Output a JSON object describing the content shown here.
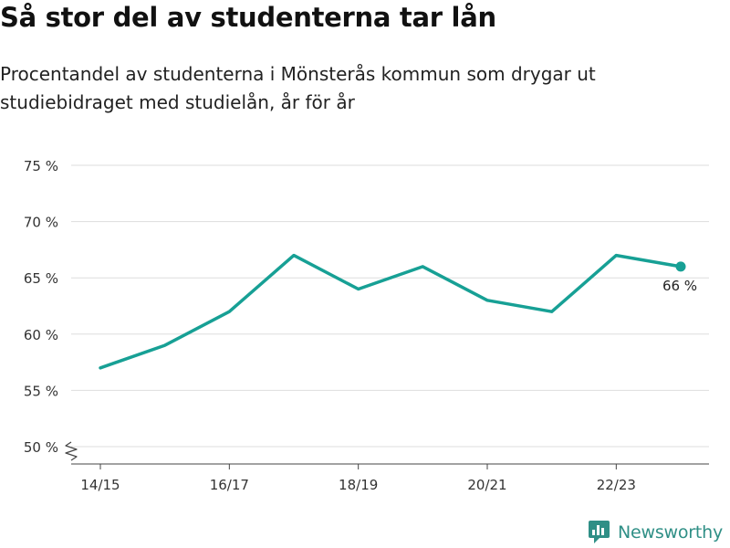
{
  "title": "Så stor del av studenterna tar lån",
  "subtitle": "Procentandel av studenterna i Mönsterås kommun som drygar ut studiebidraget med studielån, år för år",
  "brand": {
    "name": "Newsworthy",
    "color": "#2f8f86",
    "icon": "newsworthy-logo-icon"
  },
  "chart_data": {
    "type": "line",
    "x": [
      "14/15",
      "15/16",
      "16/17",
      "17/18",
      "18/19",
      "19/20",
      "20/21",
      "21/22",
      "22/23",
      "23/24"
    ],
    "xticks": [
      "14/15",
      "16/17",
      "18/19",
      "20/21",
      "22/23"
    ],
    "series": [
      {
        "values": [
          57,
          59,
          62,
          67,
          64,
          66,
          63,
          62,
          67,
          66
        ],
        "color": "#17a095"
      }
    ],
    "ylim": [
      50,
      75
    ],
    "yticks": [
      50,
      55,
      60,
      65,
      70,
      75
    ],
    "y_suffix": " %",
    "y_axis_break": true,
    "grid": true,
    "last_point_label": "66 %"
  }
}
